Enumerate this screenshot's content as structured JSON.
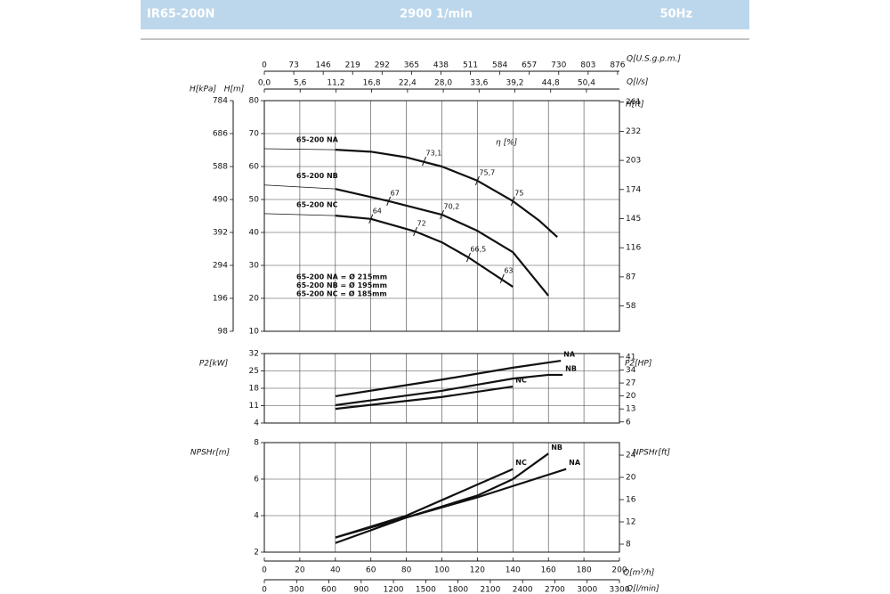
{
  "header": {
    "model": "IR65-200N",
    "speed": "2900 1/min",
    "frequency": "50Hz"
  },
  "chart_data": [
    {
      "type": "line",
      "top_axes": [
        {
          "label": "Q[U.S.g.p.m.]",
          "lim": [
            0,
            880.6
          ],
          "ticks": [
            0,
            73,
            146,
            219,
            292,
            365,
            438,
            511,
            584,
            657,
            730,
            803,
            876
          ]
        },
        {
          "label": "Q[l/s]",
          "lim": [
            0,
            55.56
          ],
          "ticks": [
            {
              "value": 0,
              "label": "0,0"
            },
            {
              "value": 5.6,
              "label": "5,6"
            },
            {
              "value": 11.2,
              "label": "11,2"
            },
            {
              "value": 16.8,
              "label": "16,8"
            },
            {
              "value": 22.4,
              "label": "22,4"
            },
            {
              "value": 28,
              "label": "28,0"
            },
            {
              "value": 33.6,
              "label": "33,6"
            },
            {
              "value": 39.2,
              "label": "39,2"
            },
            {
              "value": 44.8,
              "label": "44,8"
            },
            {
              "value": 50.4,
              "label": "50,4"
            }
          ]
        }
      ],
      "ylabel": "H[m]",
      "ylim": [
        10,
        80
      ],
      "yticks": [
        10,
        20,
        30,
        40,
        50,
        60,
        70,
        80
      ],
      "kpa_axis": {
        "label": "H[kPa]",
        "lim": [
          98,
          784
        ],
        "ticks": [
          98,
          196,
          294,
          392,
          490,
          588,
          686,
          784
        ]
      },
      "y2label": "H[ft]",
      "y2lim": [
        32.8,
        262.5
      ],
      "y2ticks": [
        58,
        87,
        116,
        145,
        174,
        203,
        232,
        261
      ],
      "series": [
        {
          "name": "65-200 NA",
          "color": "#111111",
          "x": [
            0,
            40,
            60,
            80,
            100,
            120,
            140,
            155,
            165
          ],
          "values": [
            65.4,
            65.1,
            64.5,
            62.8,
            60,
            55.7,
            49.5,
            43.5,
            38.6
          ]
        },
        {
          "name": "65-200 NB",
          "color": "#111111",
          "x": [
            0,
            40,
            70,
            100,
            120,
            140,
            160
          ],
          "values": [
            54.4,
            53.2,
            49.5,
            45.4,
            40.5,
            34,
            20.8
          ]
        },
        {
          "name": "65-200 NC",
          "color": "#111111",
          "x": [
            0,
            40,
            60,
            85,
            100,
            115,
            140
          ],
          "values": [
            45.7,
            45.1,
            44.1,
            40.3,
            37,
            32.4,
            23.5
          ]
        }
      ],
      "efficiency_label": "η [%]",
      "efficiency": [
        {
          "label": "73,1",
          "x": 90,
          "y": 61.6
        },
        {
          "label": "75,7",
          "x": 120,
          "y": 55.7
        },
        {
          "label": "75",
          "x": 140,
          "y": 49.5
        },
        {
          "label": "67",
          "x": 70,
          "y": 49.5
        },
        {
          "label": "70,2",
          "x": 100,
          "y": 45.4
        },
        {
          "label": "63",
          "x": 134,
          "y": 26
        },
        {
          "label": "64",
          "x": 60,
          "y": 44.1
        },
        {
          "label": "72",
          "x": 85,
          "y": 40.3
        },
        {
          "label": "66,5",
          "x": 115,
          "y": 32.4
        }
      ],
      "notes": [
        "65-200 NA = Ø 215mm",
        "65-200 NB = Ø 195mm",
        "65-200 NC = Ø 185mm"
      ]
    },
    {
      "type": "line",
      "ylabel": "P2[kW]",
      "ylim": [
        4,
        32
      ],
      "yticks": [
        4,
        11,
        18,
        25,
        32
      ],
      "y2label": "P2[HP]",
      "y2lim": [
        5.4,
        42.9
      ],
      "y2ticks": [
        6,
        13,
        20,
        27,
        34,
        41
      ],
      "series": [
        {
          "name": "NA",
          "color": "#111111",
          "x": [
            40,
            100,
            140,
            167
          ],
          "values": [
            14.8,
            21.5,
            26.3,
            29.1
          ]
        },
        {
          "name": "NB",
          "color": "#111111",
          "x": [
            40,
            100,
            140,
            160,
            168
          ],
          "values": [
            11.2,
            17,
            21.9,
            23.4,
            23.4
          ]
        },
        {
          "name": "NC",
          "color": "#111111",
          "x": [
            40,
            100,
            140
          ],
          "values": [
            9.7,
            14.5,
            18.7
          ]
        }
      ]
    },
    {
      "type": "line",
      "ylabel": "NPSHr[m]",
      "ylim": [
        2,
        8
      ],
      "yticks": [
        2,
        4,
        6,
        8
      ],
      "y2label": "NPSHr[ft]",
      "y2lim": [
        6.56,
        26.25
      ],
      "y2ticks": [
        8,
        12,
        16,
        20,
        24
      ],
      "xlabel": "Q[m³/h]",
      "xlim": [
        0,
        200
      ],
      "xticks": [
        0,
        20,
        40,
        60,
        80,
        100,
        120,
        140,
        160,
        180,
        200
      ],
      "bottom_axis": {
        "label": "Q[l/min]",
        "lim": [
          0,
          3300
        ],
        "ticks": [
          0,
          300,
          600,
          900,
          1200,
          1500,
          1800,
          2100,
          2400,
          2700,
          3000,
          3300
        ]
      },
      "series": [
        {
          "name": "NA",
          "color": "#111111",
          "x": [
            40,
            80,
            120,
            170
          ],
          "values": [
            2.5,
            3.9,
            5.0,
            6.55
          ]
        },
        {
          "name": "NB",
          "color": "#111111",
          "x": [
            40,
            80,
            120,
            140,
            160
          ],
          "values": [
            2.8,
            3.9,
            5.1,
            6.0,
            7.4
          ]
        },
        {
          "name": "NC",
          "color": "#111111",
          "x": [
            40,
            80,
            120,
            140
          ],
          "values": [
            2.8,
            4.0,
            5.7,
            6.55
          ]
        }
      ]
    }
  ]
}
